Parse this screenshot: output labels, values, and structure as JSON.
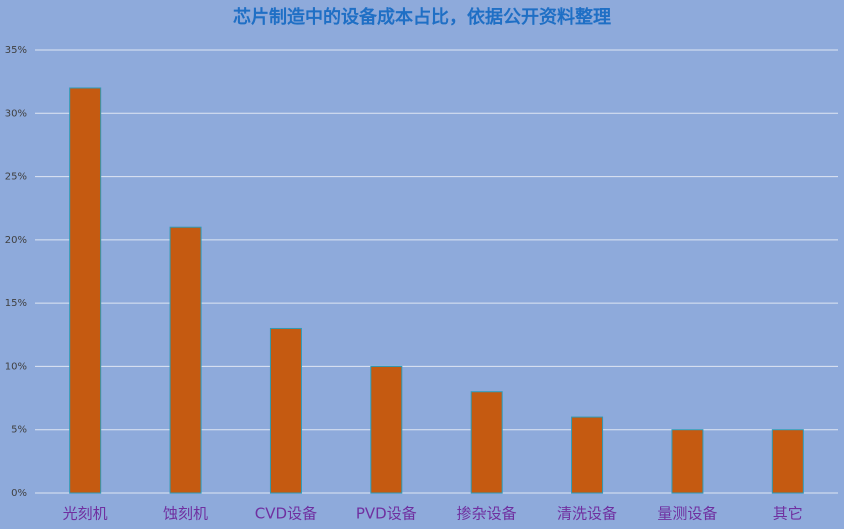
{
  "chart_data": {
    "type": "bar",
    "title": "芯片制造中的设备成本占比，依据公开资料整理",
    "categories": [
      "光刻机",
      "蚀刻机",
      "CVD设备",
      "PVD设备",
      "掺杂设备",
      "清洗设备",
      "量测设备",
      "其它"
    ],
    "values": [
      32,
      21,
      13,
      10,
      8,
      6,
      5,
      5
    ],
    "color": "#c55a11",
    "ylim": [
      0,
      35
    ],
    "yticks": [
      {
        "value": 0,
        "label": "0%"
      },
      {
        "value": 5,
        "label": "5%"
      },
      {
        "value": 10,
        "label": "10%"
      },
      {
        "value": 15,
        "label": "15%"
      },
      {
        "value": 20,
        "label": "20%"
      },
      {
        "value": 25,
        "label": "25%"
      },
      {
        "value": 30,
        "label": "30%"
      },
      {
        "value": 35,
        "label": "35%"
      }
    ],
    "grid": true
  }
}
